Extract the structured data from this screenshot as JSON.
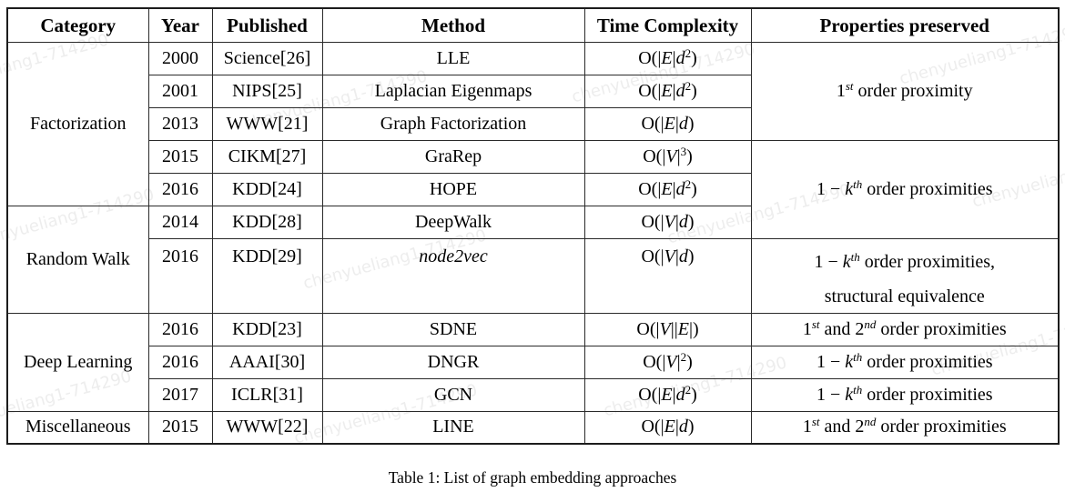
{
  "watermark": {
    "text": "chenyueliang1-714290"
  },
  "caption": "Table 1: List of graph embedding approaches",
  "table": {
    "headers": [
      "Category",
      "Year",
      "Published",
      "Method",
      "Time Complexity",
      "Properties preserved"
    ],
    "categories": [
      {
        "label": "Factorization",
        "rowspan": 5
      },
      {
        "label": "Random Walk",
        "rowspan": 2
      },
      {
        "label": "Deep Learning",
        "rowspan": 3
      },
      {
        "label": "Miscellaneous",
        "rowspan": 1
      }
    ],
    "rows": [
      {
        "year": "2000",
        "published": "Science[26]",
        "method": "LLE",
        "complexity": [
          {
            "t": "O(|"
          },
          {
            "t": "E",
            "s": "i"
          },
          {
            "t": "|"
          },
          {
            "t": "d",
            "s": "i"
          },
          {
            "t": "2",
            "s": "sup"
          },
          {
            "t": ")"
          }
        ]
      },
      {
        "year": "2001",
        "published": "NIPS[25]",
        "method": "Laplacian Eigenmaps",
        "complexity": [
          {
            "t": "O(|"
          },
          {
            "t": "E",
            "s": "i"
          },
          {
            "t": "|"
          },
          {
            "t": "d",
            "s": "i"
          },
          {
            "t": "2",
            "s": "sup"
          },
          {
            "t": ")"
          }
        ]
      },
      {
        "year": "2013",
        "published": "WWW[21]",
        "method": "Graph Factorization",
        "complexity": [
          {
            "t": "O(|"
          },
          {
            "t": "E",
            "s": "i"
          },
          {
            "t": "|"
          },
          {
            "t": "d",
            "s": "i"
          },
          {
            "t": ")"
          }
        ]
      },
      {
        "year": "2015",
        "published": "CIKM[27]",
        "method": "GraRep",
        "complexity": [
          {
            "t": "O(|"
          },
          {
            "t": "V",
            "s": "i"
          },
          {
            "t": "|"
          },
          {
            "t": "3",
            "s": "sup"
          },
          {
            "t": ")"
          }
        ]
      },
      {
        "year": "2016",
        "published": "KDD[24]",
        "method": "HOPE",
        "complexity": [
          {
            "t": "O(|"
          },
          {
            "t": "E",
            "s": "i"
          },
          {
            "t": "|"
          },
          {
            "t": "d",
            "s": "i"
          },
          {
            "t": "2",
            "s": "sup"
          },
          {
            "t": ")"
          }
        ]
      },
      {
        "year": "2014",
        "published": "KDD[28]",
        "method": "DeepWalk",
        "complexity": [
          {
            "t": "O(|"
          },
          {
            "t": "V",
            "s": "i"
          },
          {
            "t": "|"
          },
          {
            "t": "d",
            "s": "i"
          },
          {
            "t": ")"
          }
        ]
      },
      {
        "year": "2016",
        "published": "KDD[29]",
        "method": [
          {
            "t": "node2vec",
            "s": "i"
          }
        ],
        "complexity": [
          {
            "t": "O(|"
          },
          {
            "t": "V",
            "s": "i"
          },
          {
            "t": "|"
          },
          {
            "t": "d",
            "s": "i"
          },
          {
            "t": ")"
          }
        ]
      },
      {
        "year": "2016",
        "published": "KDD[23]",
        "method": "SDNE",
        "complexity": [
          {
            "t": "O(|"
          },
          {
            "t": "V",
            "s": "i"
          },
          {
            "t": "||"
          },
          {
            "t": "E",
            "s": "i"
          },
          {
            "t": "|)"
          }
        ]
      },
      {
        "year": "2016",
        "published": "AAAI[30]",
        "method": "DNGR",
        "complexity": [
          {
            "t": "O(|"
          },
          {
            "t": "V",
            "s": "i"
          },
          {
            "t": "|"
          },
          {
            "t": "2",
            "s": "sup"
          },
          {
            "t": ")"
          }
        ]
      },
      {
        "year": "2017",
        "published": "ICLR[31]",
        "method": "GCN",
        "complexity": [
          {
            "t": "O(|"
          },
          {
            "t": "E",
            "s": "i"
          },
          {
            "t": "|"
          },
          {
            "t": "d",
            "s": "i"
          },
          {
            "t": "2",
            "s": "sup"
          },
          {
            "t": ")"
          }
        ]
      },
      {
        "year": "2015",
        "published": "WWW[22]",
        "method": "LINE",
        "complexity": [
          {
            "t": "O(|"
          },
          {
            "t": "E",
            "s": "i"
          },
          {
            "t": "|"
          },
          {
            "t": "d",
            "s": "i"
          },
          {
            "t": ")"
          }
        ]
      }
    ],
    "properties": [
      {
        "rowspan": 3,
        "seg": [
          {
            "t": "1"
          },
          {
            "t": "st",
            "s": "supi"
          },
          {
            "t": " order proximity"
          }
        ]
      },
      {
        "rowspan": 3,
        "seg": [
          {
            "t": "1 − "
          },
          {
            "t": "k",
            "s": "i"
          },
          {
            "t": "th",
            "s": "supi"
          },
          {
            "t": " order proximities"
          }
        ]
      },
      {
        "rowspan": 1,
        "seg": [
          {
            "t": "1 − "
          },
          {
            "t": "k",
            "s": "i"
          },
          {
            "t": "th",
            "s": "supi"
          },
          {
            "t": " order proximities,"
          },
          {
            "br": true
          },
          {
            "t": "structural equivalence"
          }
        ]
      },
      {
        "rowspan": 1,
        "seg": [
          {
            "t": "1"
          },
          {
            "t": "st",
            "s": "supi"
          },
          {
            "t": " and 2"
          },
          {
            "t": "nd",
            "s": "supi"
          },
          {
            "t": " order proximities"
          }
        ]
      },
      {
        "rowspan": 1,
        "seg": [
          {
            "t": "1 − "
          },
          {
            "t": "k",
            "s": "i"
          },
          {
            "t": "th",
            "s": "supi"
          },
          {
            "t": " order proximities"
          }
        ]
      },
      {
        "rowspan": 1,
        "seg": [
          {
            "t": "1 − "
          },
          {
            "t": "k",
            "s": "i"
          },
          {
            "t": "th",
            "s": "supi"
          },
          {
            "t": " order proximities"
          }
        ]
      },
      {
        "rowspan": 1,
        "seg": [
          {
            "t": "1"
          },
          {
            "t": "st",
            "s": "supi"
          },
          {
            "t": " and 2"
          },
          {
            "t": "nd",
            "s": "supi"
          },
          {
            "t": " order proximities"
          }
        ]
      }
    ]
  }
}
